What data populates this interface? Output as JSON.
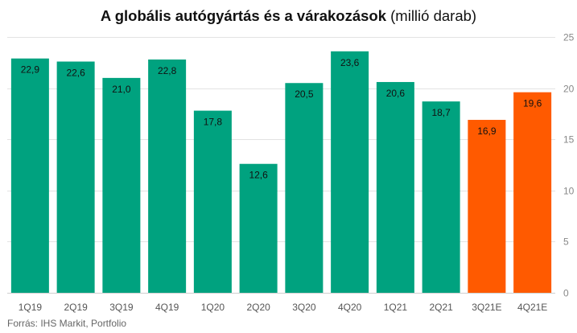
{
  "title": "A globális autógyártás és a várakozások",
  "title_unit": "(millió darab)",
  "source": "Forrás:  IHS Markit,  Portfolio",
  "colors": {
    "actual": "#00a27f",
    "estimate": "#ff5a00",
    "grid": "#e3e3e3"
  },
  "chart_data": {
    "type": "bar",
    "title": "A globális autógyártás és a várakozások (millió darab)",
    "categories": [
      "1Q19",
      "2Q19",
      "3Q19",
      "4Q19",
      "1Q20",
      "2Q20",
      "3Q20",
      "4Q20",
      "1Q21",
      "2Q21",
      "3Q21E",
      "4Q21E"
    ],
    "values": [
      22.9,
      22.6,
      21.0,
      22.8,
      17.8,
      12.6,
      20.5,
      23.6,
      20.6,
      18.7,
      16.9,
      19.6
    ],
    "value_labels": [
      "22,9",
      "22,6",
      "21,0",
      "22,8",
      "17,8",
      "12,6",
      "20,5",
      "23,6",
      "20,6",
      "18,7",
      "16,9",
      "19,6"
    ],
    "estimate": [
      false,
      false,
      false,
      false,
      false,
      false,
      false,
      false,
      false,
      false,
      true,
      true
    ],
    "ylim": [
      0,
      25
    ],
    "yticks": [
      0,
      5,
      10,
      15,
      20,
      25
    ],
    "y_axis_side": "right",
    "grid": true,
    "xlabel": "",
    "ylabel": ""
  }
}
